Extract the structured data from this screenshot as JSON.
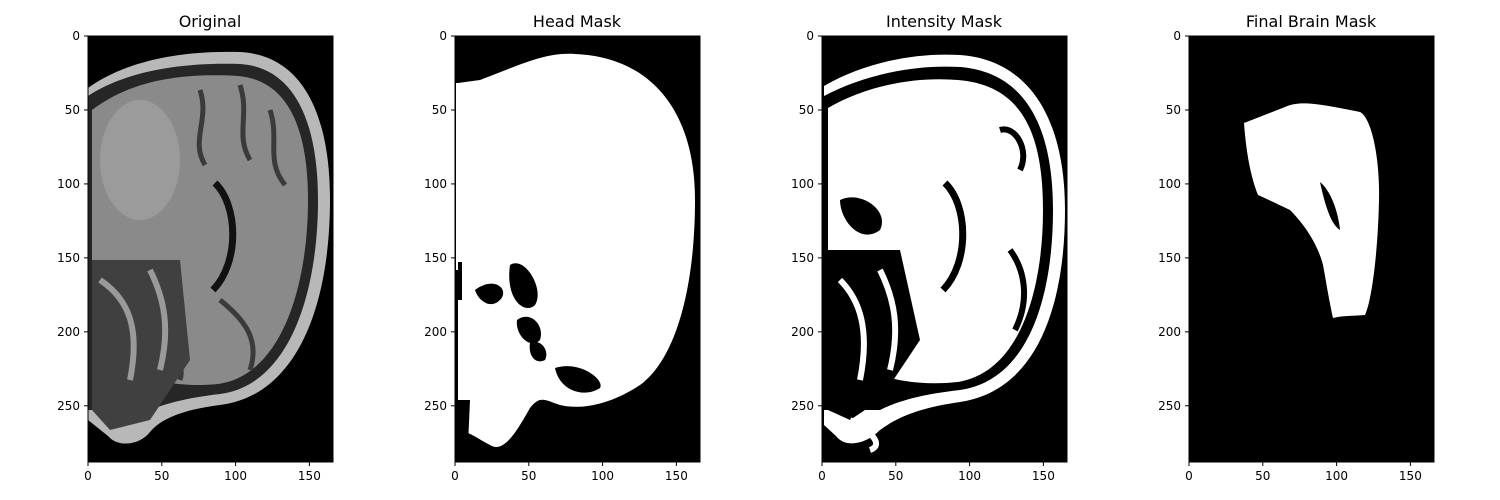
{
  "figure": {
    "panels": [
      {
        "title": "Original",
        "kind": "grayscale-mri",
        "xticks": [
          "0",
          "50",
          "100",
          "150"
        ],
        "yticks": [
          "0",
          "50",
          "100",
          "150",
          "200",
          "250"
        ]
      },
      {
        "title": "Head Mask",
        "kind": "binary-mask",
        "xticks": [
          "0",
          "50",
          "100",
          "150"
        ],
        "yticks": [
          "0",
          "50",
          "100",
          "150",
          "200",
          "250"
        ]
      },
      {
        "title": "Intensity Mask",
        "kind": "binary-mask",
        "xticks": [
          "0",
          "50",
          "100",
          "150"
        ],
        "yticks": [
          "0",
          "50",
          "100",
          "150",
          "200",
          "250"
        ]
      },
      {
        "title": "Final Brain Mask",
        "kind": "binary-mask",
        "xticks": [
          "0",
          "50",
          "100",
          "150"
        ],
        "yticks": [
          "0",
          "50",
          "100",
          "150",
          "200",
          "250"
        ]
      }
    ],
    "image_size": {
      "width": 166,
      "height": 288
    },
    "colors": {
      "mask_on": "#ffffff",
      "mask_off": "#000000",
      "tissue": "#8a8a8a"
    }
  }
}
